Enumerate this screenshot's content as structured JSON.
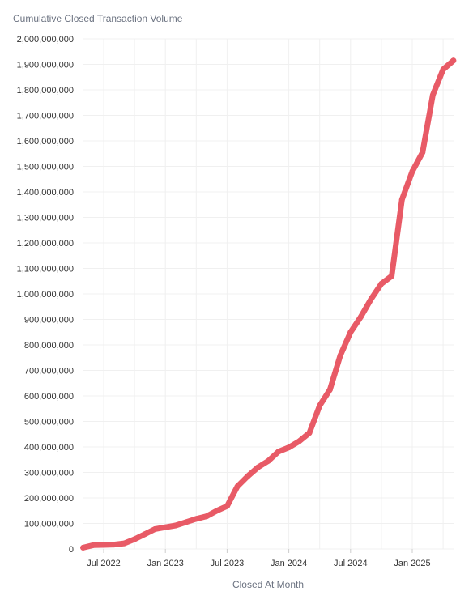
{
  "chart_data": {
    "type": "line",
    "title": "Cumulative Closed Transaction Volume",
    "xlabel": "Closed At Month",
    "ylabel": "",
    "ylim": [
      0,
      2000000000
    ],
    "y_ticks": [
      0,
      100000000,
      200000000,
      300000000,
      400000000,
      500000000,
      600000000,
      700000000,
      800000000,
      900000000,
      1000000000,
      1100000000,
      1200000000,
      1300000000,
      1400000000,
      1500000000,
      1600000000,
      1700000000,
      1800000000,
      1900000000,
      2000000000
    ],
    "y_tick_labels": [
      "0",
      "100,000,000",
      "200,000,000",
      "300,000,000",
      "400,000,000",
      "500,000,000",
      "600,000,000",
      "700,000,000",
      "800,000,000",
      "900,000,000",
      "1,000,000,000",
      "1,100,000,000",
      "1,200,000,000",
      "1,300,000,000",
      "1,400,000,000",
      "1,500,000,000",
      "1,600,000,000",
      "1,700,000,000",
      "1,800,000,000",
      "1,900,000,000",
      "2,000,000,000"
    ],
    "x_ticks": [
      {
        "label": "Jul 2022",
        "date": "2022-07"
      },
      {
        "label": "Jan 2023",
        "date": "2023-01"
      },
      {
        "label": "Jul 2023",
        "date": "2023-07"
      },
      {
        "label": "Jan 2024",
        "date": "2024-01"
      },
      {
        "label": "Jul 2024",
        "date": "2024-07"
      },
      {
        "label": "Jan 2025",
        "date": "2025-01"
      }
    ],
    "grid": true,
    "series": [
      {
        "color": "#e85a66",
        "points": [
          {
            "x": "2022-05",
            "y": 5000000
          },
          {
            "x": "2022-06",
            "y": 15000000
          },
          {
            "x": "2022-07",
            "y": 16000000
          },
          {
            "x": "2022-08",
            "y": 17000000
          },
          {
            "x": "2022-09",
            "y": 22000000
          },
          {
            "x": "2022-10",
            "y": 38000000
          },
          {
            "x": "2022-11",
            "y": 58000000
          },
          {
            "x": "2022-12",
            "y": 78000000
          },
          {
            "x": "2023-01",
            "y": 85000000
          },
          {
            "x": "2023-02",
            "y": 92000000
          },
          {
            "x": "2023-03",
            "y": 105000000
          },
          {
            "x": "2023-04",
            "y": 118000000
          },
          {
            "x": "2023-05",
            "y": 128000000
          },
          {
            "x": "2023-06",
            "y": 150000000
          },
          {
            "x": "2023-07",
            "y": 168000000
          },
          {
            "x": "2023-08",
            "y": 245000000
          },
          {
            "x": "2023-09",
            "y": 285000000
          },
          {
            "x": "2023-10",
            "y": 320000000
          },
          {
            "x": "2023-11",
            "y": 345000000
          },
          {
            "x": "2023-12",
            "y": 382000000
          },
          {
            "x": "2024-01",
            "y": 398000000
          },
          {
            "x": "2024-02",
            "y": 422000000
          },
          {
            "x": "2024-03",
            "y": 455000000
          },
          {
            "x": "2024-04",
            "y": 562000000
          },
          {
            "x": "2024-05",
            "y": 625000000
          },
          {
            "x": "2024-06",
            "y": 758000000
          },
          {
            "x": "2024-07",
            "y": 850000000
          },
          {
            "x": "2024-08",
            "y": 910000000
          },
          {
            "x": "2024-09",
            "y": 980000000
          },
          {
            "x": "2024-10",
            "y": 1040000000
          },
          {
            "x": "2024-11",
            "y": 1070000000
          },
          {
            "x": "2024-12",
            "y": 1370000000
          },
          {
            "x": "2025-01",
            "y": 1480000000
          },
          {
            "x": "2025-02",
            "y": 1555000000
          },
          {
            "x": "2025-03",
            "y": 1780000000
          },
          {
            "x": "2025-04",
            "y": 1880000000
          },
          {
            "x": "2025-05",
            "y": 1915000000
          }
        ]
      }
    ]
  }
}
